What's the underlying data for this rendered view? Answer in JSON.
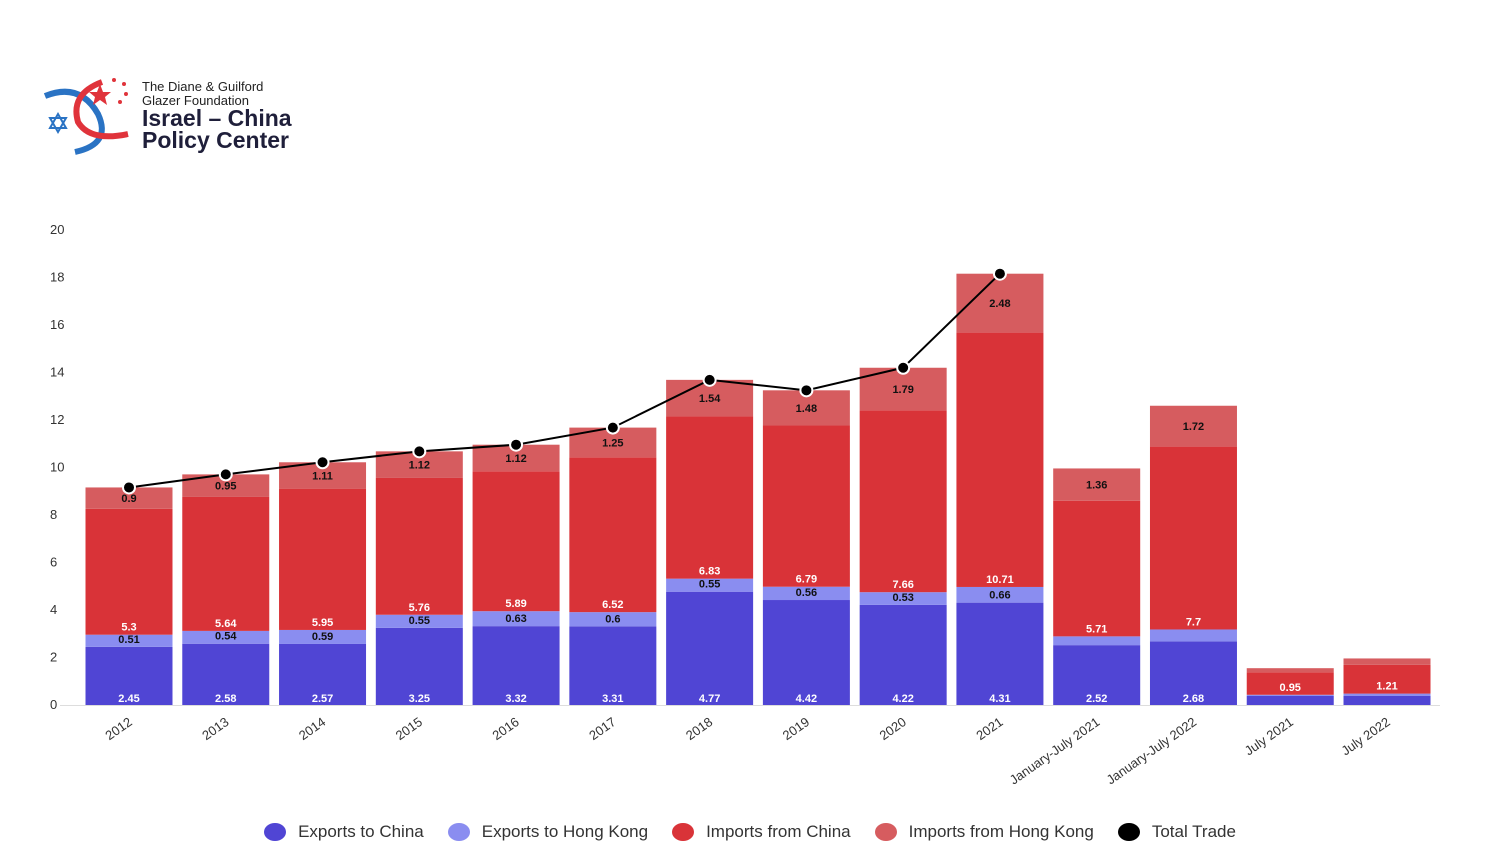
{
  "logo": {
    "line1": "The Diane & Guilford",
    "line2": "Glazer Foundation",
    "line3": "Israel – China",
    "line4": "Policy Center"
  },
  "chart_data": {
    "type": "bar",
    "stacked": true,
    "categories": [
      "2012",
      "2013",
      "2014",
      "2015",
      "2016",
      "2017",
      "2018",
      "2019",
      "2020",
      "2021",
      "January-July 2021",
      "January-July 2022",
      "July 2021",
      "July 2022"
    ],
    "ylim": [
      0,
      20
    ],
    "yticks": [
      0,
      2,
      4,
      6,
      8,
      10,
      12,
      14,
      16,
      18,
      20
    ],
    "grid": false,
    "legend_position": "bottom",
    "series": [
      {
        "name": "Exports to China",
        "color": "#5045d4",
        "values": [
          2.45,
          2.58,
          2.57,
          3.25,
          3.32,
          3.31,
          4.77,
          4.42,
          4.22,
          4.31,
          2.52,
          2.68,
          0.38,
          0.38
        ],
        "labels": [
          "2.45",
          "2.58",
          "2.57",
          "3.25",
          "3.32",
          "3.31",
          "4.77",
          "4.42",
          "4.22",
          "4.31",
          "2.52",
          "2.68",
          "",
          ""
        ]
      },
      {
        "name": "Exports to Hong Kong",
        "color": "#8a8df0",
        "values": [
          0.51,
          0.54,
          0.59,
          0.55,
          0.63,
          0.6,
          0.55,
          0.56,
          0.53,
          0.66,
          0.37,
          0.5,
          0.05,
          0.1
        ],
        "labels": [
          "0.51",
          "0.54",
          "0.59",
          "0.55",
          "0.63",
          "0.6",
          "0.55",
          "0.56",
          "0.53",
          "0.66",
          "",
          "",
          "",
          ""
        ]
      },
      {
        "name": "Imports from China",
        "color": "#d93338",
        "values": [
          5.3,
          5.64,
          5.95,
          5.76,
          5.89,
          6.52,
          6.83,
          6.79,
          7.66,
          10.71,
          5.71,
          7.7,
          0.95,
          1.21
        ],
        "labels": [
          "5.3",
          "5.64",
          "5.95",
          "5.76",
          "5.89",
          "6.52",
          "6.83",
          "6.79",
          "7.66",
          "10.71",
          "5.71",
          "7.7",
          "0.95",
          "1.21"
        ]
      },
      {
        "name": "Imports from Hong Kong",
        "color": "#d65c5f",
        "values": [
          0.9,
          0.95,
          1.11,
          1.12,
          1.12,
          1.25,
          1.54,
          1.48,
          1.79,
          2.48,
          1.36,
          1.72,
          0.17,
          0.27
        ],
        "labels": [
          "0.9",
          "0.95",
          "1.11",
          "1.12",
          "1.12",
          "1.25",
          "1.54",
          "1.48",
          "1.79",
          "2.48",
          "1.36",
          "1.72",
          "",
          ""
        ]
      }
    ],
    "line_series": {
      "name": "Total Trade",
      "color": "#000000",
      "values": [
        9.16,
        9.71,
        10.22,
        10.68,
        10.96,
        11.68,
        13.69,
        13.25,
        14.2,
        18.16,
        null,
        null,
        null,
        null
      ]
    }
  }
}
